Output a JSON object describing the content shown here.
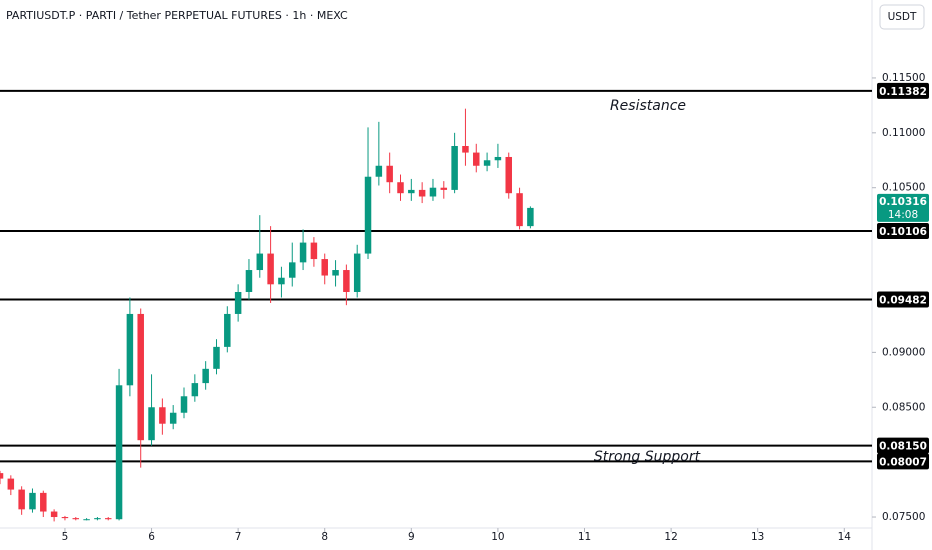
{
  "header": {
    "title": "PARTIUSDT.P · PARTI / Tether PERPETUAL FUTURES · 1h · MEXC",
    "currency_button": "USDT"
  },
  "chart_data": {
    "type": "candlestick",
    "x": [
      4.25,
      4.375,
      4.5,
      4.625,
      4.75,
      4.875,
      5.0,
      5.125,
      5.25,
      5.375,
      5.5,
      5.625,
      5.75,
      5.875,
      6.0,
      6.125,
      6.25,
      6.375,
      6.5,
      6.625,
      6.75,
      6.875,
      7.0,
      7.125,
      7.25,
      7.375,
      7.5,
      7.625,
      7.75,
      7.875,
      8.0,
      8.125,
      8.25,
      8.375,
      8.5,
      8.625,
      8.75,
      8.875,
      9.0,
      9.125,
      9.25,
      9.375,
      9.5,
      9.625,
      9.75,
      9.875,
      10.0,
      10.125,
      10.25,
      10.375
    ],
    "open": [
      0.079,
      0.0785,
      0.0775,
      0.0757,
      0.0772,
      0.0755,
      0.075,
      0.0749,
      0.0748,
      0.0748,
      0.0749,
      0.0748,
      0.087,
      0.0935,
      0.082,
      0.085,
      0.0835,
      0.0845,
      0.086,
      0.0872,
      0.0885,
      0.0905,
      0.0935,
      0.0955,
      0.0975,
      0.099,
      0.0962,
      0.0968,
      0.0982,
      0.1,
      0.0985,
      0.097,
      0.0975,
      0.0955,
      0.099,
      0.106,
      0.107,
      0.1055,
      0.1045,
      0.1048,
      0.1042,
      0.105,
      0.1048,
      0.1088,
      0.1082,
      0.107,
      0.1075,
      0.1078,
      0.1045,
      0.1015
    ],
    "high": [
      0.0792,
      0.0788,
      0.0778,
      0.0776,
      0.0774,
      0.0757,
      0.0751,
      0.075,
      0.0749,
      0.075,
      0.075,
      0.0885,
      0.095,
      0.094,
      0.088,
      0.0858,
      0.0852,
      0.0868,
      0.088,
      0.0892,
      0.0912,
      0.0942,
      0.0962,
      0.0985,
      0.1025,
      0.1015,
      0.0978,
      0.1,
      0.1012,
      0.1005,
      0.099,
      0.0984,
      0.098,
      0.0998,
      0.1105,
      0.111,
      0.1082,
      0.1062,
      0.1058,
      0.1055,
      0.1058,
      0.1056,
      0.11,
      0.1122,
      0.109,
      0.1082,
      0.109,
      0.1082,
      0.105,
      0.1033
    ],
    "low": [
      0.078,
      0.077,
      0.0752,
      0.0754,
      0.075,
      0.0746,
      0.0747,
      0.0747,
      0.0747,
      0.0747,
      0.0747,
      0.0747,
      0.086,
      0.0795,
      0.0815,
      0.0825,
      0.083,
      0.084,
      0.0855,
      0.0866,
      0.088,
      0.09,
      0.0928,
      0.0948,
      0.0968,
      0.0945,
      0.095,
      0.096,
      0.0975,
      0.0978,
      0.0962,
      0.096,
      0.0943,
      0.095,
      0.0985,
      0.1052,
      0.1045,
      0.1038,
      0.1038,
      0.1036,
      0.1038,
      0.104,
      0.1045,
      0.107,
      0.1064,
      0.1065,
      0.1068,
      0.104,
      0.1012,
      0.1013
    ],
    "close": [
      0.0785,
      0.0775,
      0.0757,
      0.0772,
      0.0755,
      0.075,
      0.0749,
      0.0748,
      0.0748,
      0.0749,
      0.0748,
      0.087,
      0.0935,
      0.082,
      0.085,
      0.0835,
      0.0845,
      0.086,
      0.0872,
      0.0885,
      0.0905,
      0.0935,
      0.0955,
      0.0975,
      0.099,
      0.0962,
      0.0968,
      0.0982,
      0.1,
      0.0985,
      0.097,
      0.0975,
      0.0955,
      0.099,
      0.106,
      0.107,
      0.1055,
      0.1045,
      0.1048,
      0.1042,
      0.105,
      0.1048,
      0.1088,
      0.1082,
      0.107,
      0.1075,
      0.1078,
      0.1045,
      0.1015,
      0.10316
    ],
    "up_color": "#089981",
    "down_color": "#f23645",
    "xlim": [
      4.25,
      14.32
    ],
    "ylim": [
      0.074,
      0.1221
    ],
    "xticks": [
      5,
      6,
      7,
      8,
      9,
      10,
      11,
      12,
      13,
      14
    ],
    "yticks": [
      {
        "value": 0.115,
        "label": "0.11500"
      },
      {
        "value": 0.11,
        "label": "0.11000"
      },
      {
        "value": 0.105,
        "label": "0.10500"
      },
      {
        "value": 0.09,
        "label": "0.09000"
      },
      {
        "value": 0.085,
        "label": "0.08500"
      },
      {
        "value": 0.075,
        "label": "0.07500"
      }
    ],
    "levels": [
      0.11382,
      0.10106,
      0.09482,
      {
        "value": 0.0815,
        "label": "0.08150"
      },
      0.08007
    ],
    "level_color": "#000000",
    "annotations": [
      "Resistance",
      "Strong Support"
    ],
    "last_price": 0.10316,
    "countdown": "14:08"
  }
}
